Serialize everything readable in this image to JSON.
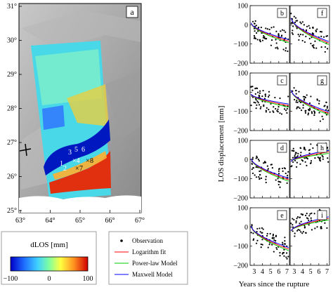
{
  "map": {
    "label": "a",
    "lat_ticks": [
      "31°",
      "30°",
      "29°",
      "28°",
      "27°",
      "26°",
      "25°"
    ],
    "lon_ticks": [
      "63°",
      "64°",
      "65°",
      "66°",
      "67°"
    ],
    "points": [
      "1",
      "2",
      "3",
      "4",
      "5",
      "6",
      "7",
      "8"
    ]
  },
  "colorbar": {
    "title": "dLOS [mm]",
    "ticks": [
      "−100",
      "0",
      "100"
    ],
    "colors": [
      "#0000c8",
      "#2070ff",
      "#40d0ff",
      "#80ffa0",
      "#ffff40",
      "#ff9020",
      "#d00000"
    ]
  },
  "legend": {
    "items": [
      {
        "label": "Observation",
        "color": "#000000",
        "kind": "dot"
      },
      {
        "label": "Logarithm fit",
        "color": "#ff0000",
        "kind": "line"
      },
      {
        "label": "Power-law Model",
        "color": "#00cc00",
        "kind": "line"
      },
      {
        "label": "Maxwell Model",
        "color": "#0000ff",
        "kind": "line"
      }
    ]
  },
  "chart_data": {
    "type": "scatter",
    "ylabel": "LOS displacement [mm]",
    "xlabel": "Years since the rupture",
    "xlim": [
      2.5,
      7.3
    ],
    "ylim": [
      -200,
      100
    ],
    "xticks": [
      "3",
      "4",
      "5",
      "6",
      "7"
    ],
    "yticks": [
      "100",
      "0",
      "−100",
      "−200"
    ],
    "panels": [
      {
        "label": "b",
        "start": 10,
        "end": -85
      },
      {
        "label": "f",
        "start": 35,
        "end": -95
      },
      {
        "label": "c",
        "start": -10,
        "end": -70
      },
      {
        "label": "g",
        "start": 10,
        "end": -110
      },
      {
        "label": "d",
        "start": 5,
        "end": -105
      },
      {
        "label": "h",
        "start": -10,
        "end": 40
      },
      {
        "label": "e",
        "start": 5,
        "end": -115
      },
      {
        "label": "i",
        "start": -20,
        "end": 45
      }
    ]
  }
}
